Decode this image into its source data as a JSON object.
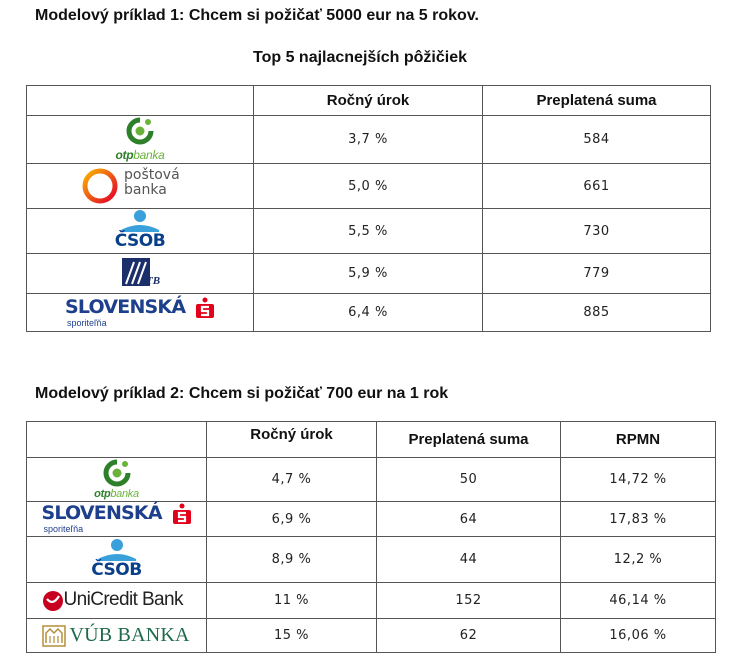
{
  "example1": {
    "heading": "Modelový príklad 1: Chcem si požičať  5000 eur na 5 rokov.",
    "subheading": "Top 5 najlacnejších pôžičiek",
    "columns": [
      "",
      "Ročný úrok",
      "Preplatená suma"
    ],
    "rows": [
      {
        "bank": "otpbanka",
        "rate": "3,7 %",
        "overpay": "584"
      },
      {
        "bank": "poštová banka",
        "rate": "5,0 %",
        "overpay": "661"
      },
      {
        "bank": "ČSOB",
        "rate": "5,5 %",
        "overpay": "730"
      },
      {
        "bank": "TB",
        "rate": "5,9 %",
        "overpay": "779"
      },
      {
        "bank": "SLOVENSKÁ sporiteľňa",
        "rate": "6,4 %",
        "overpay": "885"
      }
    ]
  },
  "example2": {
    "heading": "Modelový príklad 2: Chcem si požičať  700 eur na 1 rok",
    "columns": [
      "",
      "Ročný úrok",
      "Preplatená suma",
      "RPMN"
    ],
    "rows": [
      {
        "bank": "otpbanka",
        "rate": "4,7 %",
        "overpay": "50",
        "rpmn": "14,72 %"
      },
      {
        "bank": "SLOVENSKÁ sporiteľňa",
        "rate": "6,9 %",
        "overpay": "64",
        "rpmn": "17,83 %"
      },
      {
        "bank": "ČSOB",
        "rate": "8,9 %",
        "overpay": "44",
        "rpmn": "12,2 %"
      },
      {
        "bank": "UniCredit Bank",
        "rate": "11 %",
        "overpay": "152",
        "rpmn": "46,14 %"
      },
      {
        "bank": "VÚB BANKA",
        "rate": "15 %",
        "overpay": "62",
        "rpmn": "16,06 %"
      }
    ]
  },
  "logos": {
    "otp_word_a": "otp",
    "otp_word_b": "banka",
    "pb_line1": "poštová",
    "pb_line2": "banka",
    "csob": "ČSOB",
    "tb": "TB",
    "slsp_word": "SLOVENSKÁ",
    "slsp_sub": "sporiteľňa",
    "uc": "UniCredit Bank",
    "vub": "VÚB BANKA"
  },
  "colors": {
    "otp_green": "#2d7f2a",
    "otp_light": "#6bb23b",
    "csob_blue": "#0a3f8a",
    "csob_light": "#3aa0dc",
    "slsp_blue": "#1d3f8c",
    "slsp_red": "#e2001a",
    "uc_red": "#c6001e",
    "vub_green": "#1e6b4a",
    "vub_gold": "#b58d3a",
    "tb_blue": "#1b2f6b"
  }
}
